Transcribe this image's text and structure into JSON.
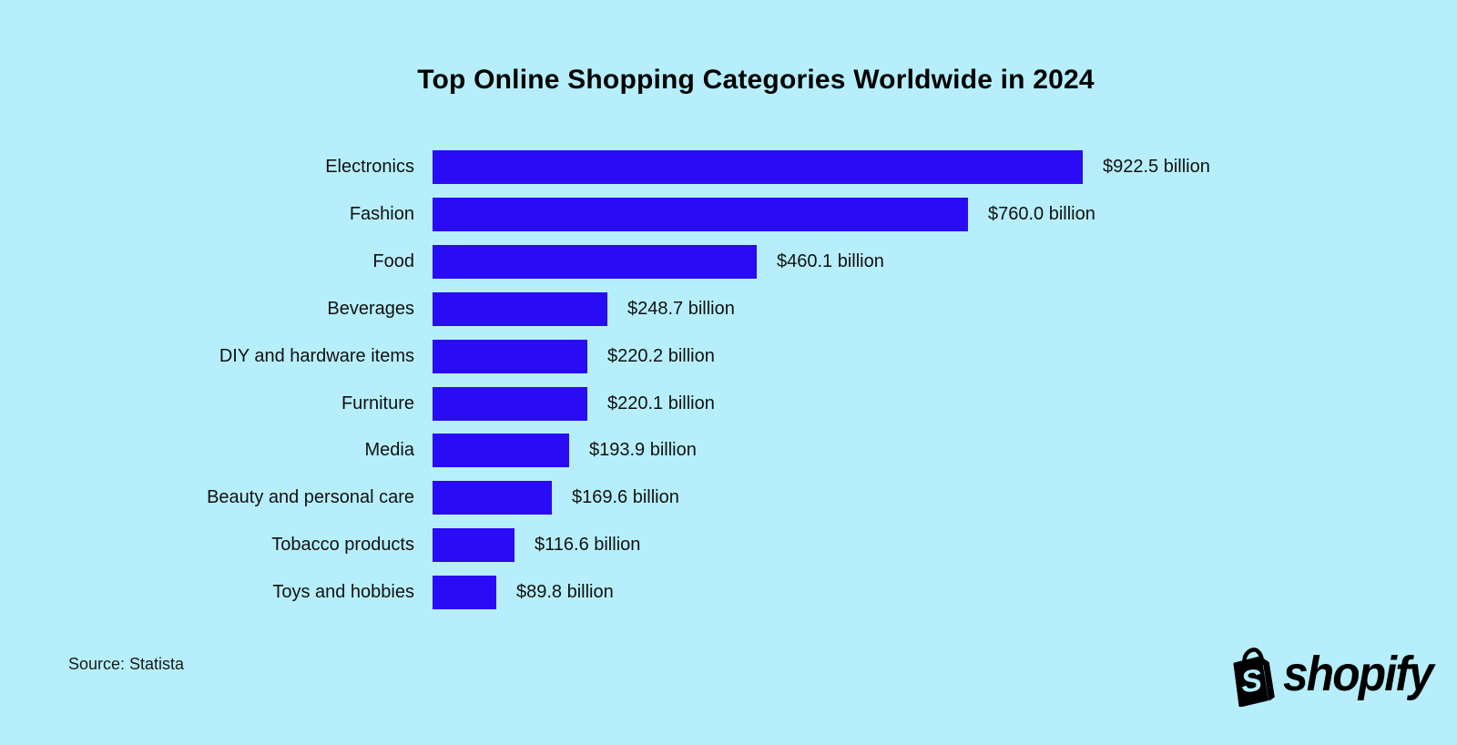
{
  "title": "Top Online Shopping Categories Worldwide in 2024",
  "source": "Source: Statista",
  "brand": {
    "name": "shopify",
    "icon": "shopify-bag-icon"
  },
  "colors": {
    "background": "#B6EFFB",
    "bar": "#2A0BF5",
    "text": "#111111"
  },
  "chart_data": {
    "type": "bar",
    "orientation": "horizontal",
    "title": "Top Online Shopping Categories Worldwide in 2024",
    "unit": "USD billion",
    "categories": [
      "Electronics",
      "Fashion",
      "Food",
      "Beverages",
      "DIY and hardware items",
      "Furniture",
      "Media",
      "Beauty and personal care",
      "Tobacco products",
      "Toys and hobbies"
    ],
    "values": [
      922.5,
      760.0,
      460.1,
      248.7,
      220.2,
      220.1,
      193.9,
      169.6,
      116.6,
      89.8
    ],
    "value_labels": [
      "$922.5 billion",
      "$760.0 billion",
      "$460.1 billion",
      "$248.7 billion",
      "$220.2 billion",
      "$220.1 billion",
      "$193.9 billion",
      "$169.6 billion",
      "$116.6 billion",
      "$89.8 billion"
    ],
    "xlim": [
      0,
      1000
    ],
    "grid": false,
    "data_labels": true,
    "legend": false,
    "source_note": "Source: Statista"
  }
}
